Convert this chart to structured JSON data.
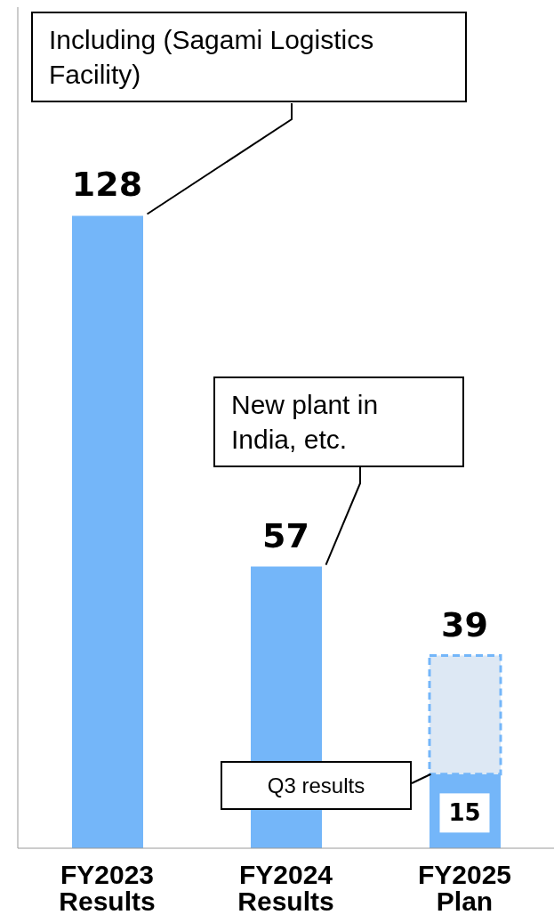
{
  "chart_data": {
    "type": "bar",
    "stacked": true,
    "categories": [
      "FY2023 Results",
      "FY2024 Results",
      "FY2025 Plan"
    ],
    "series": [
      {
        "color": "#74b6f9",
        "values": [
          128,
          57,
          15
        ],
        "value_labels": [
          null,
          null,
          "15"
        ]
      },
      {
        "color": "#dde8f4",
        "values": [
          null,
          null,
          24
        ],
        "line_style": "dashed"
      }
    ],
    "totals": [
      "128",
      "57",
      "39"
    ],
    "tick_labels": "x",
    "grid": false,
    "legend": false,
    "annotations": [
      "Including (Sagami Logistics Facility)",
      "New plant in India, etc.",
      "Q3 results"
    ]
  }
}
